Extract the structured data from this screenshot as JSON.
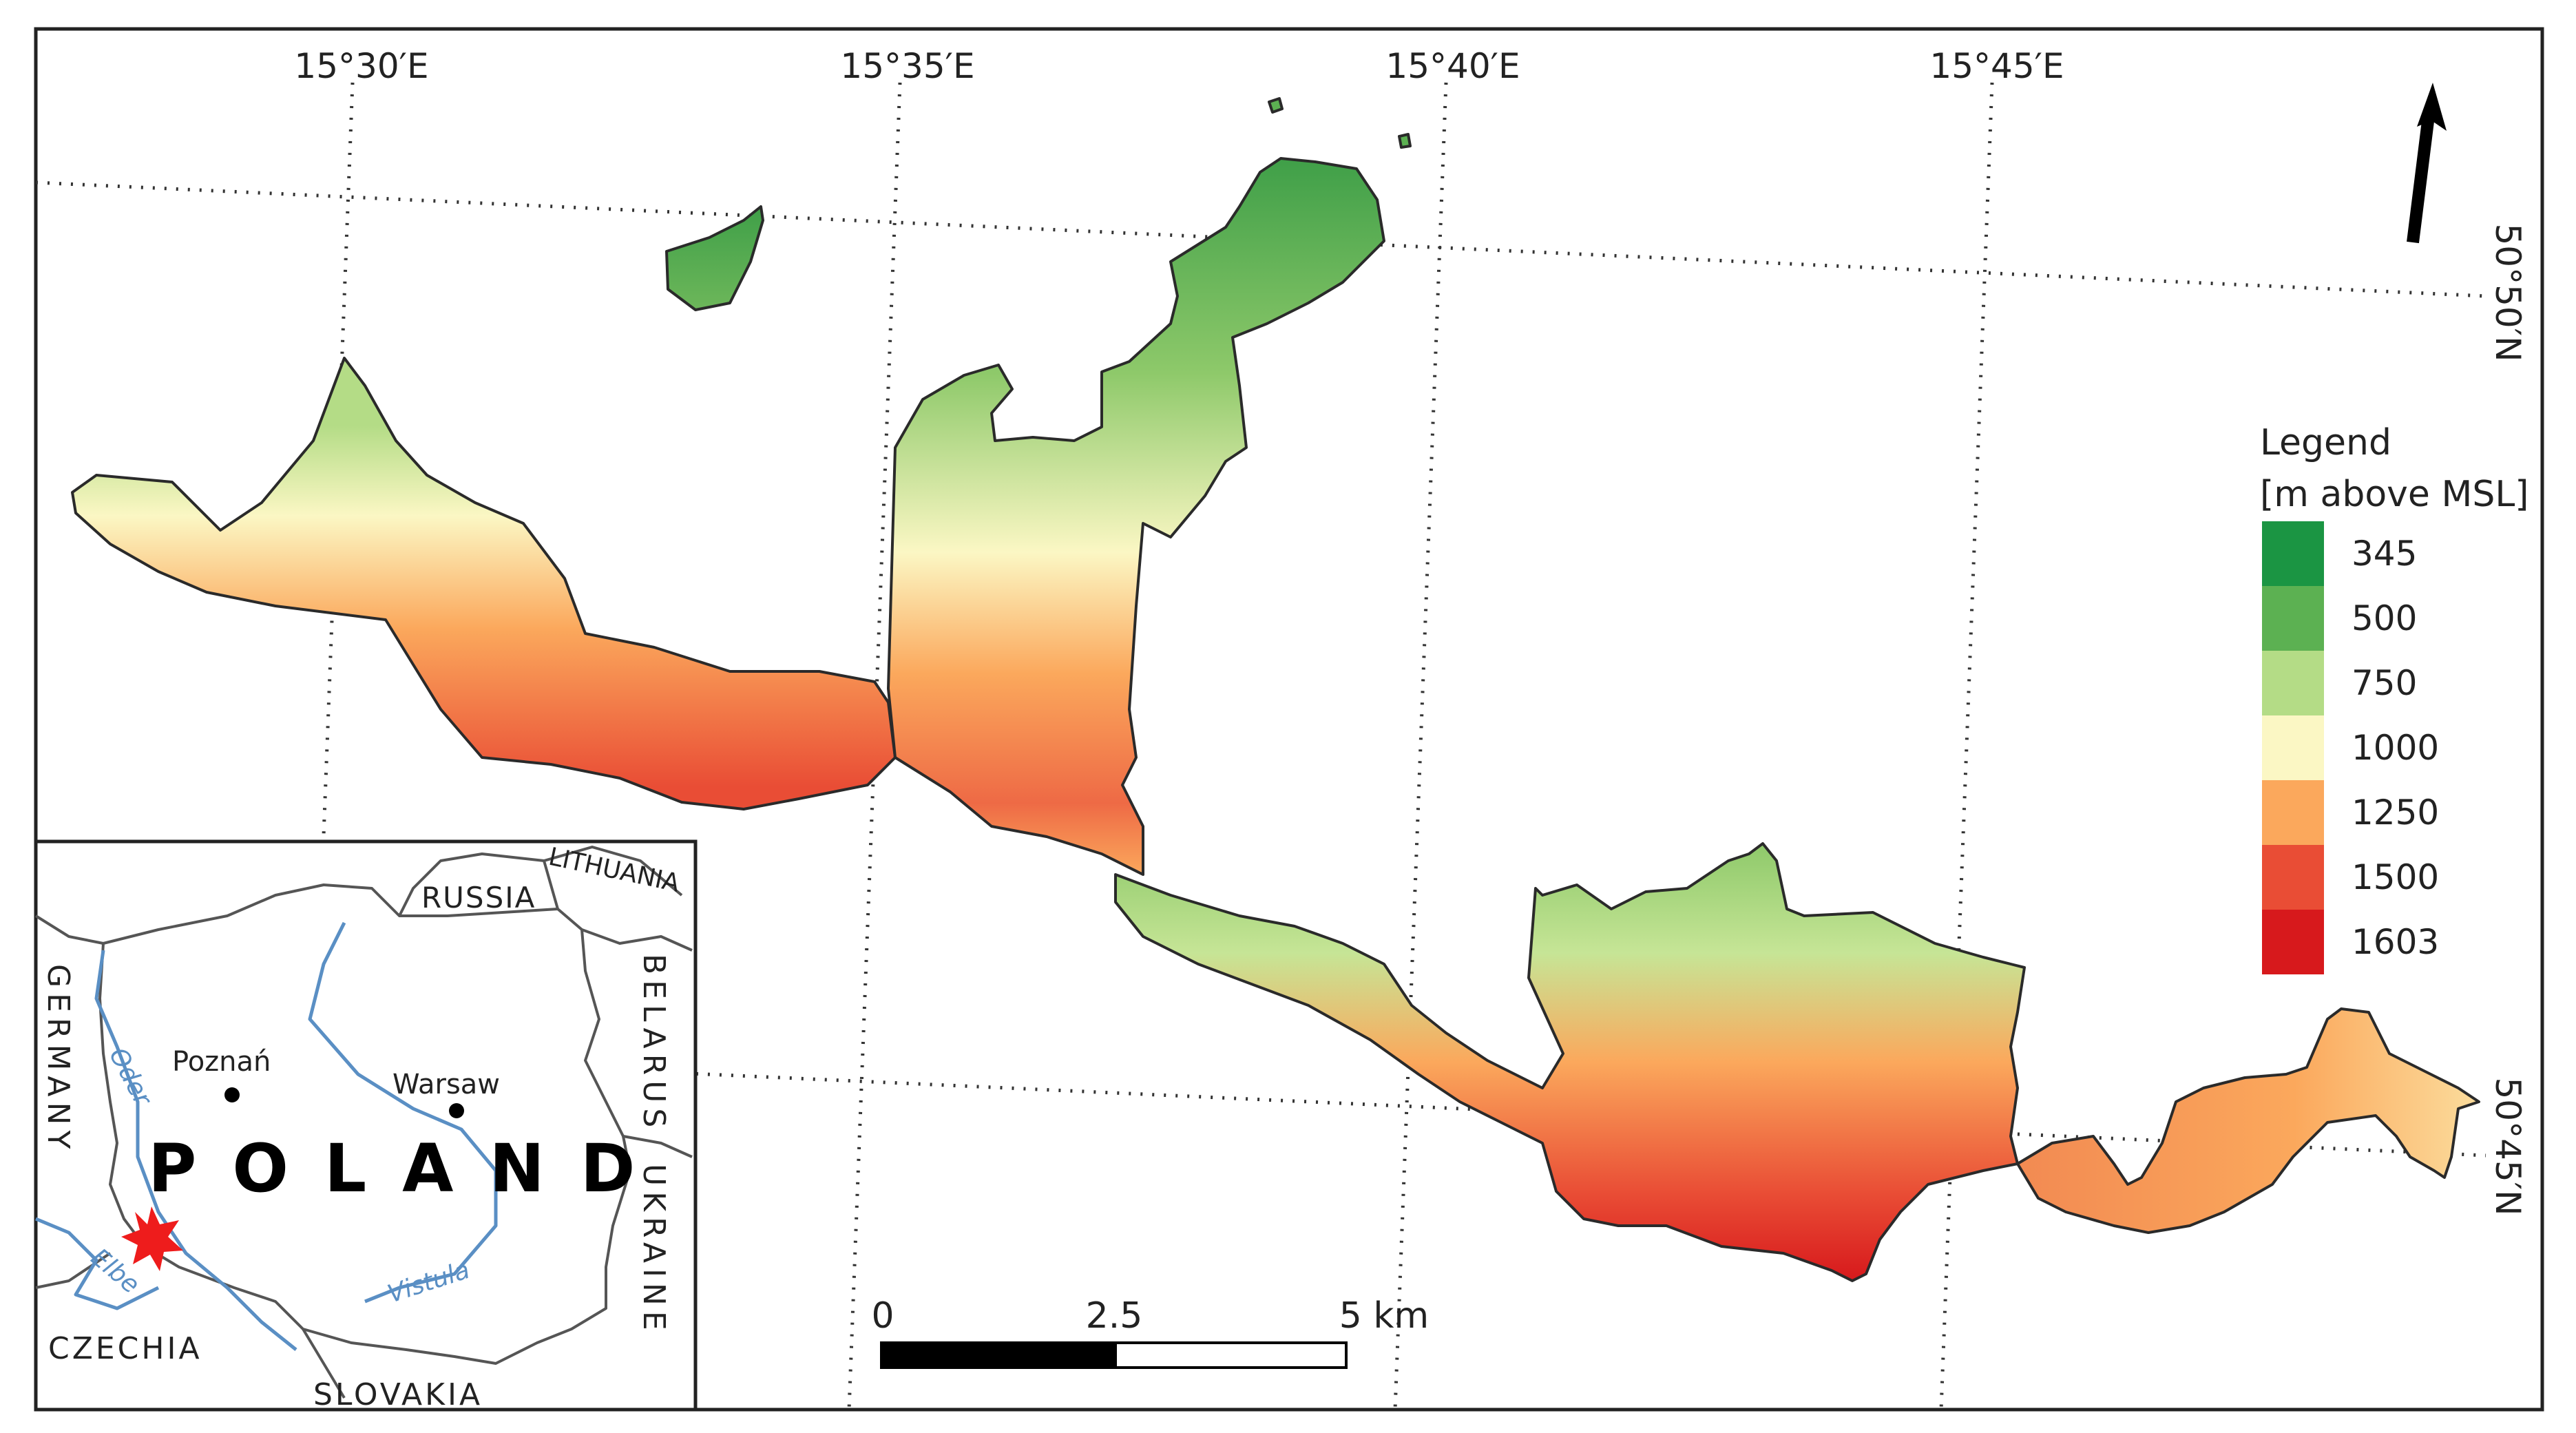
{
  "map": {
    "longitude_labels": [
      "15°30′E",
      "15°35′E",
      "15°40′E",
      "15°45′E"
    ],
    "latitude_labels": [
      "50°50′N",
      "50°45′N"
    ],
    "north_arrow": "north-arrow-icon"
  },
  "legend": {
    "title": "Legend",
    "unit": "[m above MSL]",
    "entries": [
      {
        "value": "345",
        "color": "#1b9543"
      },
      {
        "value": "500",
        "color": "#5cb152"
      },
      {
        "value": "750",
        "color": "#b4dc86"
      },
      {
        "value": "1000",
        "color": "#fbf7c4"
      },
      {
        "value": "1250",
        "color": "#fba85c"
      },
      {
        "value": "1500",
        "color": "#e94d35"
      },
      {
        "value": "1603",
        "color": "#d7191c"
      }
    ]
  },
  "scale_bar": {
    "labels": [
      "0",
      "2.5",
      "5 km"
    ]
  },
  "inset": {
    "country": "POLAND",
    "neighbors": [
      "RUSSIA",
      "LITHUANIA",
      "BELARUS",
      "UKRAINE",
      "SLOVAKIA",
      "CZECHIA",
      "GERMANY"
    ],
    "cities": [
      "Poznań",
      "Warsaw"
    ],
    "rivers": [
      "Oder",
      "Elbe",
      "Vistula"
    ],
    "marker": "study-area-star-icon"
  }
}
